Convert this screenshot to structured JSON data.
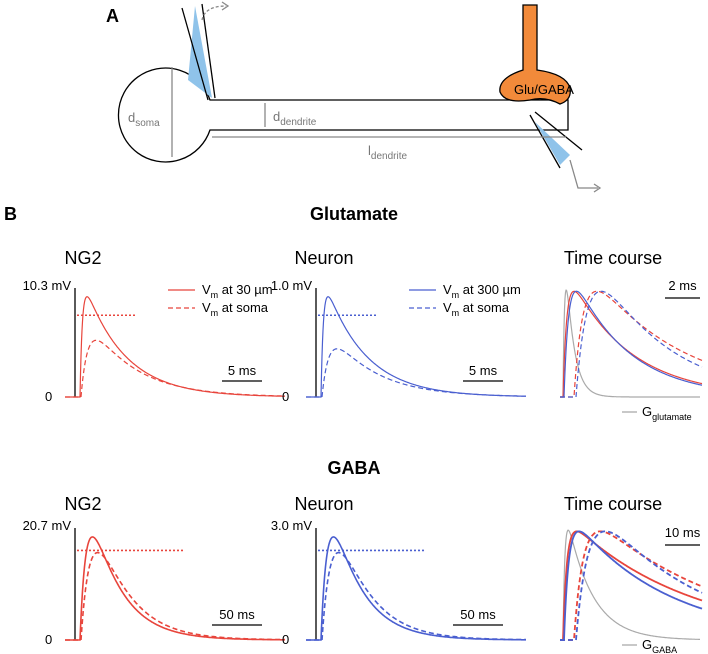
{
  "panel_a": {
    "label": "A",
    "synapse": "Glu/GABA",
    "d_soma": {
      "base": "d",
      "sub": "soma"
    },
    "d_dendrite": {
      "base": "d",
      "sub": "dendrite"
    },
    "l_dendrite": {
      "base": "l",
      "sub": "dendrite"
    }
  },
  "panel_b": {
    "label": "B",
    "rows": [
      {
        "title": "Glutamate",
        "plots": [
          {
            "title": "NG2",
            "y_max": "10.3 mV",
            "y_min": "0",
            "scale": "5 ms",
            "legend": [
              {
                "base": "V",
                "sub": "m",
                "rest": " at 30 µm"
              },
              {
                "base": "V",
                "sub": "m",
                "rest": " at soma"
              }
            ]
          },
          {
            "title": "Neuron",
            "y_max": "1.0 mV",
            "y_min": "0",
            "scale": "5 ms",
            "legend": [
              {
                "base": "V",
                "sub": "m",
                "rest": "  at 300 µm"
              },
              {
                "base": "V",
                "sub": "m",
                "rest": " at soma"
              }
            ]
          }
        ],
        "time_course": {
          "title": "Time course",
          "scale": "2 ms",
          "conductance": {
            "base": "G",
            "sub": "glutamate"
          }
        }
      },
      {
        "title": "GABA",
        "plots": [
          {
            "title": "NG2",
            "y_max": "20.7 mV",
            "y_min": "0",
            "scale": "50 ms"
          },
          {
            "title": "Neuron",
            "y_max": "3.0 mV",
            "y_min": "0",
            "scale": "50 ms"
          }
        ],
        "time_course": {
          "title": "Time course",
          "scale": "10 ms",
          "conductance": {
            "base": "G",
            "sub": "GABA"
          }
        }
      }
    ]
  }
}
